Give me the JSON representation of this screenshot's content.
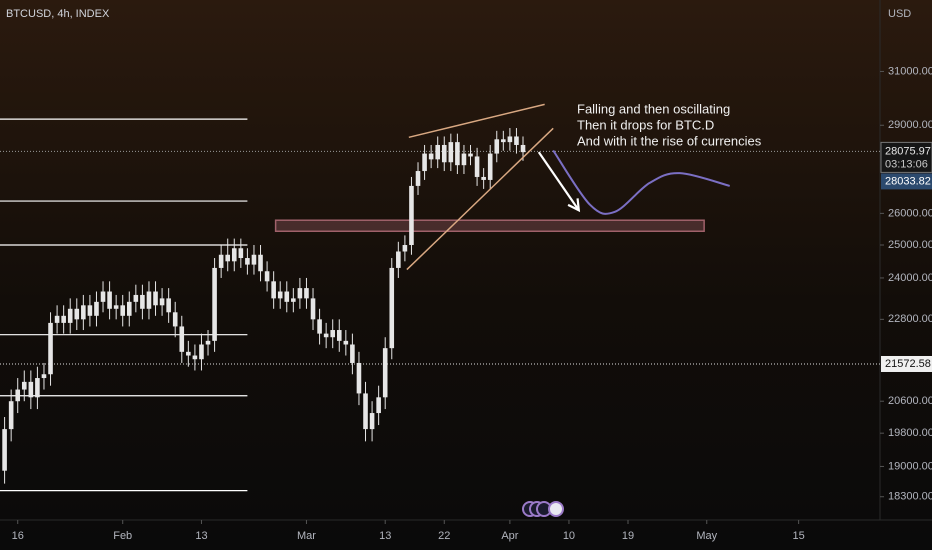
{
  "chart_data": {
    "type": "candlestick",
    "title": "BTCUSD, 4h, INDEX",
    "unit": "USD",
    "log_scale": true,
    "candle_color": "#e6e6e6",
    "xlim": [
      13.3,
      147.4
    ],
    "ylim": [
      17780,
      33870
    ],
    "xticks": [
      16,
      {
        "value": 32,
        "label": "Feb"
      },
      {
        "value": 44,
        "label": "13"
      },
      {
        "value": 60,
        "label": "Mar"
      },
      {
        "value": 72,
        "label": "13"
      },
      {
        "value": 81,
        "label": "22"
      },
      {
        "value": 91,
        "label": "Apr"
      },
      {
        "value": 100,
        "label": "10"
      },
      {
        "value": 109,
        "label": "19"
      },
      {
        "value": 121,
        "label": "May"
      },
      {
        "value": 135,
        "label": "15"
      }
    ],
    "yticks": [
      {
        "value": 31000,
        "label": "31000.00"
      },
      {
        "value": 29000,
        "label": "29000.00"
      },
      {
        "value": 26000,
        "label": "26000.00"
      },
      {
        "value": 25000,
        "label": "25000.00"
      },
      {
        "value": 24000,
        "label": "24000.00"
      },
      {
        "value": 22800,
        "label": "22800.00"
      },
      {
        "value": 20600,
        "label": "20600.00"
      },
      {
        "value": 19800,
        "label": "19800.00"
      },
      {
        "value": 19000,
        "label": "19000.00"
      },
      {
        "value": 18300,
        "label": "18300.00"
      }
    ],
    "x": [
      14,
      15,
      16,
      17,
      18,
      19,
      20,
      21,
      22,
      23,
      24,
      25,
      26,
      27,
      28,
      29,
      30,
      31,
      32,
      33,
      34,
      35,
      36,
      37,
      38,
      39,
      40,
      41,
      42,
      43,
      44,
      45,
      46,
      47,
      48,
      49,
      50,
      51,
      52,
      53,
      54,
      55,
      56,
      57,
      58,
      59,
      60,
      61,
      62,
      63,
      64,
      65,
      66,
      67,
      68,
      69,
      70,
      71,
      72,
      73,
      74,
      75,
      76,
      77,
      78,
      79,
      80,
      81,
      82,
      83,
      84,
      85,
      86,
      87,
      88,
      89,
      90,
      91,
      92,
      93
    ],
    "open": [
      18900,
      19900,
      20600,
      20900,
      21100,
      20700,
      21200,
      21300,
      22700,
      22900,
      22700,
      23100,
      22800,
      23200,
      22900,
      23300,
      23600,
      23100,
      23200,
      22900,
      23300,
      23500,
      23100,
      23600,
      23200,
      23400,
      23000,
      22600,
      21900,
      21800,
      21700,
      22100,
      22200,
      24300,
      24700,
      24500,
      24900,
      24600,
      24400,
      24700,
      24200,
      23900,
      23400,
      23600,
      23300,
      23400,
      23700,
      23400,
      22800,
      22400,
      22300,
      22500,
      22200,
      22100,
      21600,
      20800,
      19900,
      20300,
      20700,
      22000,
      24300,
      24800,
      25000,
      26900,
      27400,
      28000,
      27800,
      28300,
      27700,
      28400,
      27600,
      28000,
      27900,
      27200,
      27100,
      28000,
      28500,
      28400,
      28600,
      28300
    ],
    "high": [
      20200,
      20900,
      21200,
      21400,
      21400,
      21500,
      21600,
      23000,
      23200,
      23200,
      23400,
      23400,
      23500,
      23500,
      23600,
      23900,
      23900,
      23500,
      23500,
      23600,
      23800,
      23800,
      23900,
      23900,
      23700,
      23700,
      23300,
      22900,
      22200,
      22100,
      22400,
      22500,
      24600,
      25000,
      25200,
      25200,
      25200,
      24900,
      25000,
      25000,
      24500,
      24200,
      23900,
      23900,
      23700,
      24000,
      24000,
      23700,
      23100,
      22700,
      22800,
      22800,
      22500,
      22400,
      21900,
      21100,
      20600,
      21000,
      22300,
      24600,
      25100,
      25300,
      27200,
      27700,
      28300,
      28300,
      28600,
      28600,
      28700,
      28700,
      28300,
      28300,
      28200,
      27500,
      28300,
      28800,
      28800,
      28900,
      28900,
      28600
    ],
    "low": [
      18600,
      19600,
      20300,
      20600,
      20400,
      20400,
      20900,
      21000,
      22400,
      22400,
      22400,
      22500,
      22500,
      22600,
      22600,
      23000,
      22800,
      22800,
      22600,
      22600,
      23000,
      22800,
      22800,
      22900,
      22900,
      22700,
      22300,
      21600,
      21500,
      21400,
      21400,
      21800,
      21900,
      24000,
      24200,
      24200,
      24300,
      24100,
      24100,
      23900,
      23600,
      23100,
      23100,
      23000,
      23000,
      23100,
      23100,
      22500,
      22100,
      22000,
      22000,
      21900,
      21800,
      21300,
      20500,
      19600,
      19600,
      20000,
      20400,
      21700,
      24000,
      24500,
      24700,
      26600,
      27100,
      27500,
      27500,
      27400,
      27400,
      27300,
      27300,
      27600,
      26900,
      26800,
      26800,
      27700,
      28100,
      28100,
      28000,
      27750
    ],
    "close": [
      19900,
      20600,
      20900,
      21100,
      20700,
      21200,
      21300,
      22700,
      22900,
      22700,
      23100,
      22800,
      23200,
      22900,
      23300,
      23600,
      23100,
      23200,
      22900,
      23300,
      23500,
      23100,
      23600,
      23200,
      23400,
      23000,
      22600,
      21900,
      21800,
      21700,
      22100,
      22200,
      24300,
      24700,
      24500,
      24900,
      24600,
      24400,
      24700,
      24200,
      23900,
      23400,
      23600,
      23300,
      23400,
      23700,
      23400,
      22800,
      22400,
      22300,
      22500,
      22200,
      22100,
      21600,
      20800,
      19900,
      20300,
      20700,
      22000,
      24300,
      24800,
      25000,
      26900,
      27400,
      28000,
      27800,
      28300,
      27700,
      28400,
      27600,
      28000,
      27900,
      27200,
      27100,
      28000,
      28500,
      28400,
      28600,
      28300,
      28050
    ],
    "last_price": 28075.97,
    "countdown": "03:13:06",
    "second_price": 28033.82,
    "marked_price": 21572.58,
    "levels": {
      "color": "#ffffff",
      "x_end": 51,
      "values": [
        29220,
        26400,
        25000,
        22370,
        20740,
        18440
      ]
    },
    "zone": {
      "color": "#a0616a",
      "x": [
        55.3,
        120.6
      ],
      "y": [
        25430,
        25780
      ]
    },
    "wedge_upper": {
      "color": "#d9a882",
      "x": [
        75.6,
        96.3
      ],
      "y": [
        28570,
        29760
      ]
    },
    "wedge_lower": {
      "color": "#d9a882",
      "x": [
        75.3,
        97.6
      ],
      "y": [
        24250,
        28890
      ]
    },
    "arrow": {
      "color": "#ffffff",
      "x": [
        95.4,
        101.5
      ],
      "y": [
        28050,
        26100
      ]
    },
    "projection": {
      "color": "#7b6fc4",
      "x": [
        97.6,
        103.2,
        107,
        112.3,
        116.9,
        124.5
      ],
      "y": [
        28110,
        26280,
        26050,
        27000,
        27330,
        26900
      ]
    },
    "annotation": [
      "Falling and then oscillating",
      "Then it drops for BTC.D",
      "And with it the rise of currencies"
    ]
  }
}
